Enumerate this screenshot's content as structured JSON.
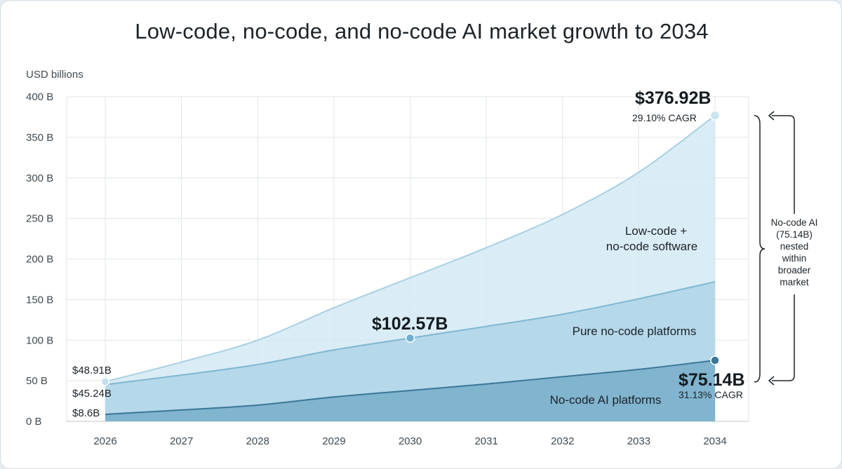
{
  "title": "Low-code, no-code, and no-code AI market growth to 2034",
  "colors": {
    "outer_fill": "#d3e9f3",
    "outer_line": "#a9d0e3",
    "mid_fill": "#a8d2e6",
    "mid_line": "#7fb7d1",
    "inner_fill": "#6fa8c6",
    "inner_line": "#3b7697",
    "grid": "#dfe5e9",
    "axis": "#b9c4cb"
  },
  "chart_data": {
    "type": "area",
    "title": "Low-code, no-code, and no-code AI market growth to 2034",
    "ylabel": "USD billions",
    "xlabel": "",
    "x": [
      2026,
      2027,
      2028,
      2029,
      2030,
      2031,
      2032,
      2033,
      2034
    ],
    "x_tick_labels": [
      "2026",
      "2027",
      "2028",
      "2029",
      "2030",
      "2031",
      "2032",
      "2033",
      "2034"
    ],
    "ylim": [
      0,
      400
    ],
    "y_ticks": [
      0,
      50,
      100,
      150,
      200,
      250,
      300,
      350,
      400
    ],
    "y_tick_labels": [
      "0 B",
      "50 B",
      "100 B",
      "150 B",
      "200 B",
      "250 B",
      "300 B",
      "350 B",
      "400 B"
    ],
    "grid": true,
    "series": [
      {
        "name": "Low-code + no-code software",
        "values": [
          48.91,
          73,
          100,
          140,
          177,
          214,
          255,
          307,
          376.92
        ]
      },
      {
        "name": "Pure no-code platforms",
        "values": [
          45.24,
          57,
          70,
          88,
          102.57,
          117,
          132,
          151,
          172
        ]
      },
      {
        "name": "No-code AI platforms",
        "values": [
          8.6,
          14,
          20,
          30,
          38,
          46,
          55,
          64,
          75.14
        ]
      }
    ],
    "region_labels": {
      "outer": [
        "Low-code +",
        "no-code software"
      ],
      "mid": "Pure no-code platforms",
      "inner": "No-code AI platforms"
    },
    "annotations": {
      "outer_start": "$48.91B",
      "mid_start": "$45.24B",
      "inner_start": "$8.6B",
      "outer_end": "$376.92B",
      "outer_end_cagr": "29.10% CAGR",
      "mid_2030": "$102.57B",
      "inner_end": "$75.14B",
      "inner_end_cagr": "31.13% CAGR"
    },
    "bracket_note": [
      "No-code AI",
      "(75.14B)",
      "nested",
      "within",
      "broader",
      "market"
    ]
  }
}
